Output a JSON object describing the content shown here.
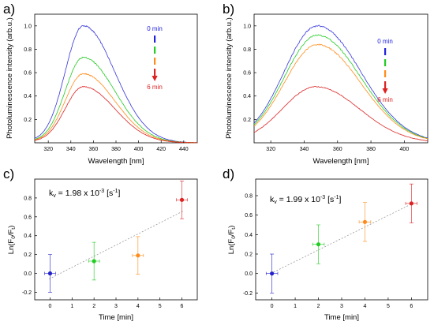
{
  "chart_data": [
    {
      "id": "a",
      "panel_label": "a)",
      "type": "line",
      "xlabel": "Wavelength [nm]",
      "ylabel": "Photoluminescence intensity (arb.u.)",
      "xlim": [
        308,
        452
      ],
      "ylim": [
        0,
        1.1
      ],
      "xticks": [
        320,
        340,
        360,
        380,
        400,
        420,
        440
      ],
      "yticks": [
        0.2,
        0.4,
        0.6,
        0.8,
        1.0
      ],
      "xtick_labels": [
        "320",
        "340",
        "360",
        "380",
        "400",
        "420",
        "440"
      ],
      "ytick_labels": [
        "0.2",
        "0.4",
        "0.6",
        "0.8",
        "1.0"
      ],
      "legend": {
        "start": "0 min",
        "end": "6 min",
        "placement": "top-right"
      },
      "series": [
        {
          "color": "#3333dd",
          "peak_x": 351,
          "peak_y": 1.0,
          "sigma_left": 16,
          "sigma_right": 28,
          "tail": 0.06,
          "tail_decay": 0.06
        },
        {
          "color": "#22cc22",
          "peak_x": 351,
          "peak_y": 0.73,
          "sigma_left": 16,
          "sigma_right": 28,
          "tail": 0.05,
          "tail_decay": 0.06
        },
        {
          "color": "#ff8c1a",
          "peak_x": 351,
          "peak_y": 0.59,
          "sigma_left": 16,
          "sigma_right": 28,
          "tail": 0.05,
          "tail_decay": 0.06
        },
        {
          "color": "#dd2222",
          "peak_x": 351,
          "peak_y": 0.48,
          "sigma_left": 16,
          "sigma_right": 28,
          "tail": 0.04,
          "tail_decay": 0.06
        }
      ]
    },
    {
      "id": "b",
      "panel_label": "b)",
      "type": "line",
      "xlabel": "Wavelength [nm]",
      "ylabel": "Photoluminescence intensity (arb.u.)",
      "xlim": [
        310,
        414
      ],
      "ylim": [
        0,
        1.1
      ],
      "xticks": [
        320,
        340,
        360,
        380,
        400
      ],
      "yticks": [
        0.2,
        0.4,
        0.6,
        0.8,
        1.0
      ],
      "xtick_labels": [
        "320",
        "340",
        "360",
        "380",
        "400"
      ],
      "ytick_labels": [
        "0.2",
        "0.4",
        "0.6",
        "0.8",
        "1.0"
      ],
      "legend": {
        "start": "0 min",
        "end": "6 min",
        "placement": "top-right"
      },
      "series": [
        {
          "color": "#3333dd",
          "peak_x": 348,
          "peak_y": 1.0,
          "sigma_left": 20,
          "sigma_right": 26,
          "tail": 0.02,
          "tail_decay": 0.05
        },
        {
          "color": "#22cc22",
          "peak_x": 348,
          "peak_y": 0.92,
          "sigma_left": 20,
          "sigma_right": 26,
          "tail": 0.02,
          "tail_decay": 0.05
        },
        {
          "color": "#ff8c1a",
          "peak_x": 348,
          "peak_y": 0.84,
          "sigma_left": 20,
          "sigma_right": 26,
          "tail": 0.02,
          "tail_decay": 0.05
        },
        {
          "color": "#dd2222",
          "peak_x": 347,
          "peak_y": 0.48,
          "sigma_left": 20,
          "sigma_right": 26,
          "tail": 0.01,
          "tail_decay": 0.05
        }
      ]
    },
    {
      "id": "c",
      "panel_label": "c)",
      "type": "scatter",
      "xlabel": "Time [min]",
      "ylabel_main": "Ln(F",
      "ylabel_sub1": "0",
      "ylabel_mid": "/F",
      "ylabel_sub2": "t",
      "ylabel_end": ")",
      "xlim": [
        -0.7,
        6.7
      ],
      "ylim": [
        -0.28,
        1.0
      ],
      "xticks": [
        0,
        1,
        2,
        3,
        4,
        5,
        6
      ],
      "yticks": [
        -0.2,
        0.0,
        0.2,
        0.4,
        0.6,
        0.8
      ],
      "xtick_labels": [
        "0",
        "1",
        "2",
        "3",
        "4",
        "5",
        "6"
      ],
      "ytick_labels": [
        "-0.2",
        "0.0",
        "0.2",
        "0.4",
        "0.6",
        "0.8"
      ],
      "annotation": {
        "prefix": "k",
        "sub": "v",
        "text": " = 1.98 x 10",
        "sup": "-3",
        "suffix": " [s",
        "sup2": "-1",
        "end": "]"
      },
      "points": [
        {
          "x": 0,
          "y": 0.0,
          "yerr": 0.2,
          "xerr": 0.25,
          "color": "#2222cc"
        },
        {
          "x": 2,
          "y": 0.13,
          "yerr": 0.2,
          "xerr": 0.25,
          "color": "#22cc22"
        },
        {
          "x": 4,
          "y": 0.19,
          "yerr": 0.2,
          "xerr": 0.25,
          "color": "#ff8c1a"
        },
        {
          "x": 6,
          "y": 0.78,
          "yerr": 0.2,
          "xerr": 0.25,
          "color": "#dd2222"
        }
      ],
      "fit": {
        "x0": -0.05,
        "y0": -0.06,
        "x1": 6.05,
        "y1": 0.66
      }
    },
    {
      "id": "d",
      "panel_label": "d)",
      "type": "scatter",
      "xlabel": "Time [min]",
      "ylabel_main": "Ln(F",
      "ylabel_sub1": "0",
      "ylabel_mid": "/F",
      "ylabel_sub2": "t",
      "ylabel_end": ")",
      "xlim": [
        -0.7,
        6.7
      ],
      "ylim": [
        -0.27,
        0.97
      ],
      "xticks": [
        0,
        1,
        2,
        3,
        4,
        5,
        6
      ],
      "yticks": [
        -0.2,
        0.0,
        0.2,
        0.4,
        0.6,
        0.8
      ],
      "xtick_labels": [
        "0",
        "1",
        "2",
        "3",
        "4",
        "5",
        "6"
      ],
      "ytick_labels": [
        "-0.2",
        "0.0",
        "0.2",
        "0.4",
        "0.6",
        "0.8"
      ],
      "annotation": {
        "prefix": "k",
        "sub": "v",
        "text": " = 1.99 x 10",
        "sup": "-3",
        "suffix": " [s",
        "sup2": "-1",
        "end": "]"
      },
      "points": [
        {
          "x": 0,
          "y": 0.0,
          "yerr": 0.2,
          "xerr": 0.25,
          "color": "#2222cc"
        },
        {
          "x": 2,
          "y": 0.3,
          "yerr": 0.2,
          "xerr": 0.25,
          "color": "#22cc22"
        },
        {
          "x": 4,
          "y": 0.53,
          "yerr": 0.2,
          "xerr": 0.25,
          "color": "#ff8c1a"
        },
        {
          "x": 6,
          "y": 0.72,
          "yerr": 0.2,
          "xerr": 0.25,
          "color": "#dd2222"
        }
      ],
      "fit": {
        "x0": -0.05,
        "y0": 0.0,
        "x1": 6.05,
        "y1": 0.72
      }
    }
  ]
}
